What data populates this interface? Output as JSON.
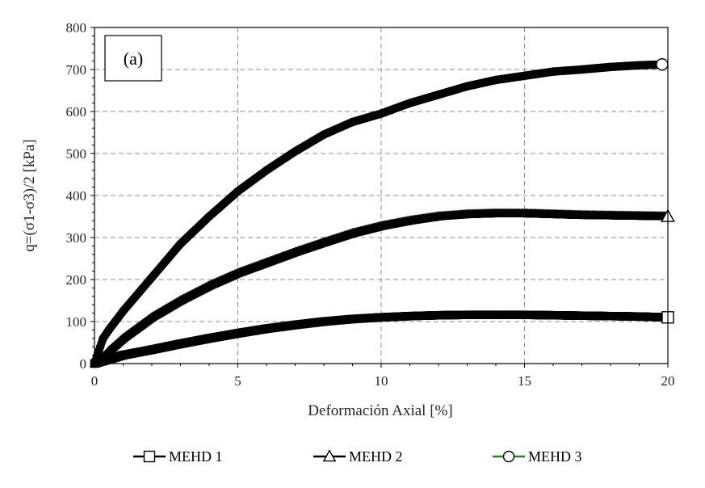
{
  "chart_data": {
    "type": "scatter",
    "panel_label": "(a)",
    "xlabel": "Deformación Axial [%]",
    "ylabel": "q=(σ1-σ3)/2 [kPa]",
    "xlim": [
      0,
      20
    ],
    "ylim": [
      0,
      800
    ],
    "x_ticks": [
      "0",
      "5",
      "10",
      "15",
      "20"
    ],
    "y_ticks": [
      "0",
      "100",
      "200",
      "300",
      "400",
      "500",
      "600",
      "700",
      "800"
    ],
    "grid": "dashed",
    "legend_position": "bottom",
    "series": [
      {
        "name": "MEHD 1",
        "marker": "square",
        "color": "#000000",
        "x": [
          0,
          0.5,
          1,
          2,
          3,
          4,
          5,
          6,
          7,
          8,
          9,
          10,
          11,
          12,
          13,
          14,
          15,
          16,
          17,
          18,
          19,
          20
        ],
        "y": [
          0,
          10,
          20,
          33,
          47,
          60,
          72,
          83,
          92,
          100,
          106,
          110,
          113,
          115,
          116,
          116,
          116,
          115,
          114,
          113,
          112,
          110
        ]
      },
      {
        "name": "MEHD 2",
        "marker": "triangle",
        "color": "#000000",
        "x": [
          0,
          0.3,
          0.5,
          1,
          2,
          3,
          4,
          5,
          6,
          7,
          8,
          9,
          10,
          11,
          12,
          13,
          14,
          15,
          16,
          17,
          18,
          19,
          20
        ],
        "y": [
          0,
          15,
          30,
          60,
          110,
          150,
          185,
          215,
          240,
          265,
          288,
          310,
          327,
          340,
          350,
          355,
          357,
          357,
          355,
          353,
          352,
          351,
          350
        ]
      },
      {
        "name": "MEHD 3",
        "marker": "circle",
        "color": "#000000",
        "x": [
          0,
          0.1,
          0.2,
          0.3,
          0.5,
          1,
          2,
          3,
          4,
          5,
          6,
          7,
          8,
          9,
          10,
          11,
          12,
          13,
          14,
          15,
          16,
          17,
          18,
          19,
          19.8
        ],
        "y": [
          0,
          20,
          40,
          60,
          80,
          125,
          205,
          285,
          350,
          410,
          460,
          505,
          545,
          575,
          595,
          620,
          640,
          660,
          675,
          685,
          695,
          700,
          706,
          710,
          712
        ]
      }
    ]
  },
  "colors": {
    "legend_line_mehd3": "#2e7d32"
  }
}
